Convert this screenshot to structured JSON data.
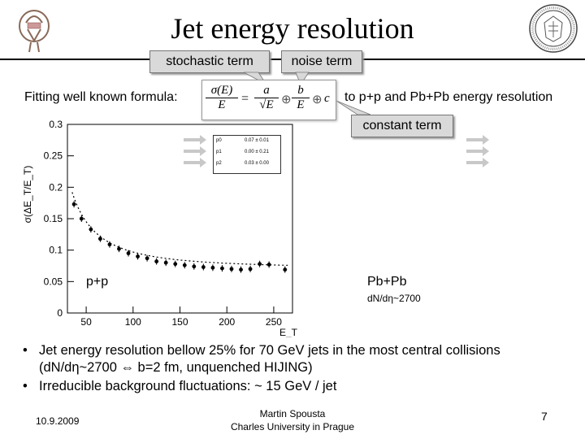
{
  "slide": {
    "title": "Jet energy resolution",
    "callouts": {
      "stochastic": "stochastic term",
      "noise": "noise term",
      "constant": "constant term"
    },
    "fitting_label": "Fitting well known formula:",
    "applied_to": "to p+p and Pb+Pb energy resolution",
    "formula": {
      "lhs_num": "σ(E)",
      "lhs_den": "E",
      "eq": "=",
      "a_num": "a",
      "a_den": "√E",
      "oplus1": "⊕",
      "b_num": "b",
      "b_den": "E",
      "oplus2": "⊕",
      "c": "c"
    },
    "pp_label": "p+p",
    "pbpb_label": "Pb+Pb",
    "pbpb_mult": "dN/dη~2700",
    "bullets": [
      "Jet energy resolution bellow 25% for 70 GeV jets in the most central collisions (dN/dη~2700 ⇔ b=2 fm, unquenched HIJING)",
      "Irreducible background fluctuations: ~ 15 GeV / jet"
    ],
    "footer": {
      "date": "10.9.2009",
      "author": "Martin Spousta",
      "institution": "Charles University in Prague",
      "page": "7"
    }
  },
  "chart_data": {
    "type": "scatter",
    "title": "",
    "xlabel": "E_T",
    "ylabel": "σ(ΔE_T/E_T)",
    "xlim": [
      30,
      270
    ],
    "ylim": [
      0,
      0.3
    ],
    "xticks": [
      "50",
      "100",
      "150",
      "200",
      "250"
    ],
    "xtick_values": [
      50,
      100,
      150,
      200,
      250
    ],
    "yticks": [
      "0",
      "0.05",
      "0.1",
      "0.15",
      "0.2",
      "0.25",
      "0.3"
    ],
    "ytick_values": [
      0,
      0.05,
      0.1,
      0.15,
      0.2,
      0.25,
      0.3
    ],
    "points": [
      {
        "x": 37,
        "y": 0.173
      },
      {
        "x": 45,
        "y": 0.15
      },
      {
        "x": 55,
        "y": 0.133
      },
      {
        "x": 65,
        "y": 0.118
      },
      {
        "x": 75,
        "y": 0.109
      },
      {
        "x": 85,
        "y": 0.102
      },
      {
        "x": 95,
        "y": 0.095
      },
      {
        "x": 105,
        "y": 0.09
      },
      {
        "x": 115,
        "y": 0.087
      },
      {
        "x": 125,
        "y": 0.082
      },
      {
        "x": 135,
        "y": 0.08
      },
      {
        "x": 145,
        "y": 0.078
      },
      {
        "x": 155,
        "y": 0.076
      },
      {
        "x": 165,
        "y": 0.074
      },
      {
        "x": 175,
        "y": 0.073
      },
      {
        "x": 185,
        "y": 0.072
      },
      {
        "x": 195,
        "y": 0.071
      },
      {
        "x": 205,
        "y": 0.07
      },
      {
        "x": 215,
        "y": 0.069
      },
      {
        "x": 225,
        "y": 0.07
      },
      {
        "x": 235,
        "y": 0.078
      },
      {
        "x": 245,
        "y": 0.077
      },
      {
        "x": 262,
        "y": 0.069
      }
    ],
    "fit": {
      "p0": 0.07,
      "p1": 0.0,
      "p2": 0.03
    },
    "fit_labels": [
      {
        "name": "p0",
        "value": "0.07 ± 0.01"
      },
      {
        "name": "p1",
        "value": "0.00 ± 0.21"
      },
      {
        "name": "p2",
        "value": "0.03 ± 0.00"
      }
    ]
  },
  "colors": {
    "callout_bg": "#d9d9d9",
    "arrow": "#c8c8c8",
    "text": "#000000"
  },
  "logos": {
    "left": "ATLAS experiment logo",
    "right": "Charles University seal"
  }
}
